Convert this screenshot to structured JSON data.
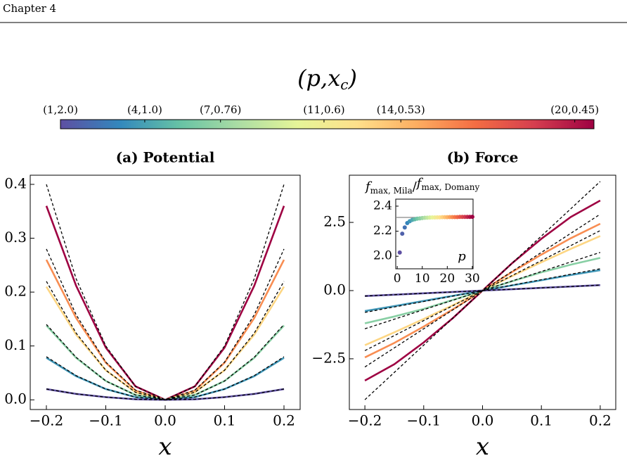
{
  "header": "Chapter 4",
  "chart_data": [
    {
      "type": "colorbar",
      "title": [
        "(p,x",
        "c",
        ")"
      ],
      "colors": [
        "#5e4fa2",
        "#3288bd",
        "#66c2a5",
        "#abdda4",
        "#e6f598",
        "#fee08b",
        "#fdae61",
        "#f46d43",
        "#d53e4f",
        "#9e0142"
      ],
      "xlim": [
        0,
        1
      ],
      "xticks": [
        {
          "value": 0,
          "label": "(1,2.0)"
        },
        {
          "value": 0.158,
          "label": "(4,1.0)"
        },
        {
          "value": 0.3,
          "label": "(7,0.76)"
        },
        {
          "value": 0.494,
          "label": "(11,0.6)"
        },
        {
          "value": 0.638,
          "label": "(14,0.53)"
        },
        {
          "value": 0.964,
          "label": "(20,0.45)"
        }
      ]
    },
    {
      "type": "line",
      "title": "(a) Potential",
      "xlabel": "x",
      "x": [
        -0.2,
        -0.15,
        -0.1,
        -0.05,
        0,
        0.05,
        0.1,
        0.15,
        0.2
      ],
      "xlim": [
        -0.2272,
        0.2272
      ],
      "ylim": [
        -0.018,
        0.417
      ],
      "xticks": [
        {
          "value": -0.2,
          "label": "−0.2"
        },
        {
          "value": -0.1,
          "label": "−0.1"
        },
        {
          "value": 0,
          "label": "0.0"
        },
        0.1,
        0.2
      ],
      "yticks": [
        {
          "value": 0,
          "label": "0.0"
        },
        0.1,
        0.2,
        0.3,
        0.4
      ],
      "series": [
        {
          "color": "#9e0142",
          "values": [
            0.36,
            0.212,
            0.097,
            0.025,
            0,
            0.025,
            0.097,
            0.212,
            0.36
          ]
        },
        {
          "color": "#f88d52",
          "values": [
            0.26,
            0.152,
            0.069,
            0.017,
            0,
            0.017,
            0.069,
            0.152,
            0.26
          ]
        },
        {
          "color": "#fdd683",
          "values": [
            0.21,
            0.121,
            0.055,
            0.014,
            0,
            0.014,
            0.055,
            0.121,
            0.21
          ]
        },
        {
          "color": "#88cfa4",
          "values": [
            0.138,
            0.078,
            0.035,
            0.009,
            0,
            0.009,
            0.035,
            0.078,
            0.138
          ]
        },
        {
          "color": "#3f96b7",
          "values": [
            0.078,
            0.044,
            0.02,
            0.005,
            0,
            0.005,
            0.02,
            0.044,
            0.078
          ]
        },
        {
          "color": "#5e4fa2",
          "values": [
            0.02,
            0.011,
            0.005,
            0.001,
            0,
            0.001,
            0.005,
            0.011,
            0.02
          ]
        },
        {
          "color": "#000000",
          "dashed": true,
          "values": [
            0.4,
            0.225,
            0.1,
            0.025,
            0,
            0.025,
            0.1,
            0.225,
            0.4
          ]
        },
        {
          "color": "#000000",
          "dashed": true,
          "values": [
            0.28,
            0.158,
            0.07,
            0.018,
            0,
            0.018,
            0.07,
            0.158,
            0.28
          ]
        },
        {
          "color": "#000000",
          "dashed": true,
          "values": [
            0.22,
            0.124,
            0.055,
            0.014,
            0,
            0.014,
            0.055,
            0.124,
            0.22
          ]
        },
        {
          "color": "#000000",
          "dashed": true,
          "values": [
            0.14,
            0.079,
            0.035,
            0.009,
            0,
            0.009,
            0.035,
            0.079,
            0.14
          ]
        },
        {
          "color": "#000000",
          "dashed": true,
          "values": [
            0.08,
            0.045,
            0.02,
            0.005,
            0,
            0.005,
            0.02,
            0.045,
            0.08
          ]
        },
        {
          "color": "#000000",
          "dashed": true,
          "values": [
            0.02,
            0.011,
            0.005,
            0.001,
            0,
            0.001,
            0.005,
            0.011,
            0.02
          ]
        }
      ]
    },
    {
      "type": "line",
      "title": "(b) Force",
      "xlabel": "x",
      "x": [
        -0.2,
        -0.15,
        -0.1,
        -0.05,
        0,
        0.05,
        0.1,
        0.15,
        0.2
      ],
      "xlim": [
        -0.2264,
        0.2264
      ],
      "ylim": [
        -4.36,
        4.23
      ],
      "xticks": [
        {
          "value": -0.2,
          "label": "−0.2"
        },
        {
          "value": -0.1,
          "label": "−0.1"
        },
        {
          "value": 0,
          "label": "0.0"
        },
        0.1,
        0.2
      ],
      "yticks": [
        {
          "value": -2.5,
          "label": "−2.5"
        },
        {
          "value": 0,
          "label": "0.0"
        },
        2.5
      ],
      "series": [
        {
          "color": "#9e0142",
          "values": [
            -3.3,
            -2.7,
            -1.9,
            -1.0,
            0,
            1.0,
            1.9,
            2.7,
            3.3
          ]
        },
        {
          "color": "#f88d52",
          "values": [
            -2.45,
            -1.92,
            -1.32,
            -0.68,
            0,
            0.68,
            1.32,
            1.92,
            2.45
          ]
        },
        {
          "color": "#fdd683",
          "values": [
            -2.0,
            -1.53,
            -1.04,
            -0.53,
            0,
            0.53,
            1.04,
            1.53,
            2.0
          ]
        },
        {
          "color": "#88cfa4",
          "values": [
            -1.2,
            -0.95,
            -0.67,
            -0.34,
            0,
            0.34,
            0.67,
            0.95,
            1.2
          ]
        },
        {
          "color": "#3f96b7",
          "values": [
            -0.75,
            -0.57,
            -0.38,
            -0.19,
            0,
            0.19,
            0.38,
            0.57,
            0.75
          ]
        },
        {
          "color": "#5e4fa2",
          "values": [
            -0.2,
            -0.15,
            -0.1,
            -0.05,
            0,
            0.05,
            0.1,
            0.15,
            0.2
          ]
        },
        {
          "color": "#000000",
          "dashed": true,
          "values": [
            -4.0,
            -3.0,
            -2.0,
            -1.0,
            0,
            1.0,
            2.0,
            3.0,
            4.0
          ]
        },
        {
          "color": "#000000",
          "dashed": true,
          "values": [
            -2.8,
            -2.1,
            -1.4,
            -0.7,
            0,
            0.7,
            1.4,
            2.1,
            2.8
          ]
        },
        {
          "color": "#000000",
          "dashed": true,
          "values": [
            -2.2,
            -1.65,
            -1.1,
            -0.55,
            0,
            0.55,
            1.1,
            1.65,
            2.2
          ]
        },
        {
          "color": "#000000",
          "dashed": true,
          "values": [
            -1.4,
            -1.05,
            -0.7,
            -0.35,
            0,
            0.35,
            0.7,
            1.05,
            1.4
          ]
        },
        {
          "color": "#000000",
          "dashed": true,
          "values": [
            -0.8,
            -0.6,
            -0.4,
            -0.2,
            0,
            0.2,
            0.4,
            0.6,
            0.8
          ]
        },
        {
          "color": "#000000",
          "dashed": true,
          "values": [
            -0.2,
            -0.15,
            -0.1,
            -0.05,
            0,
            0.05,
            0.1,
            0.15,
            0.2
          ]
        }
      ]
    },
    {
      "type": "scatter",
      "title": [
        "f",
        "max, Mila",
        "/",
        "f",
        "max, Domany"
      ],
      "xlabel": "p",
      "x": [
        1,
        2,
        3,
        4,
        5,
        6,
        7,
        8,
        9,
        10,
        11,
        12,
        13,
        14,
        15,
        16,
        17,
        18,
        19,
        20,
        21,
        22,
        23,
        24,
        25,
        26,
        27,
        28,
        29,
        30
      ],
      "values": [
        2.03,
        2.18,
        2.23,
        2.265,
        2.28,
        2.29,
        2.295,
        2.3,
        2.302,
        2.305,
        2.307,
        2.308,
        2.309,
        2.31,
        2.31,
        2.311,
        2.311,
        2.312,
        2.312,
        2.312,
        2.313,
        2.313,
        2.313,
        2.313,
        2.314,
        2.314,
        2.314,
        2.314,
        2.314,
        2.315
      ],
      "hline": 2.31,
      "hline_color": "#888888",
      "xlim": [
        -0.6,
        30.3
      ],
      "ylim": [
        1.9,
        2.456
      ],
      "xticks": [
        0,
        10,
        20,
        30
      ],
      "yticks": [
        {
          "value": 2.0,
          "label": "2.0"
        },
        2.2,
        2.4
      ]
    }
  ]
}
